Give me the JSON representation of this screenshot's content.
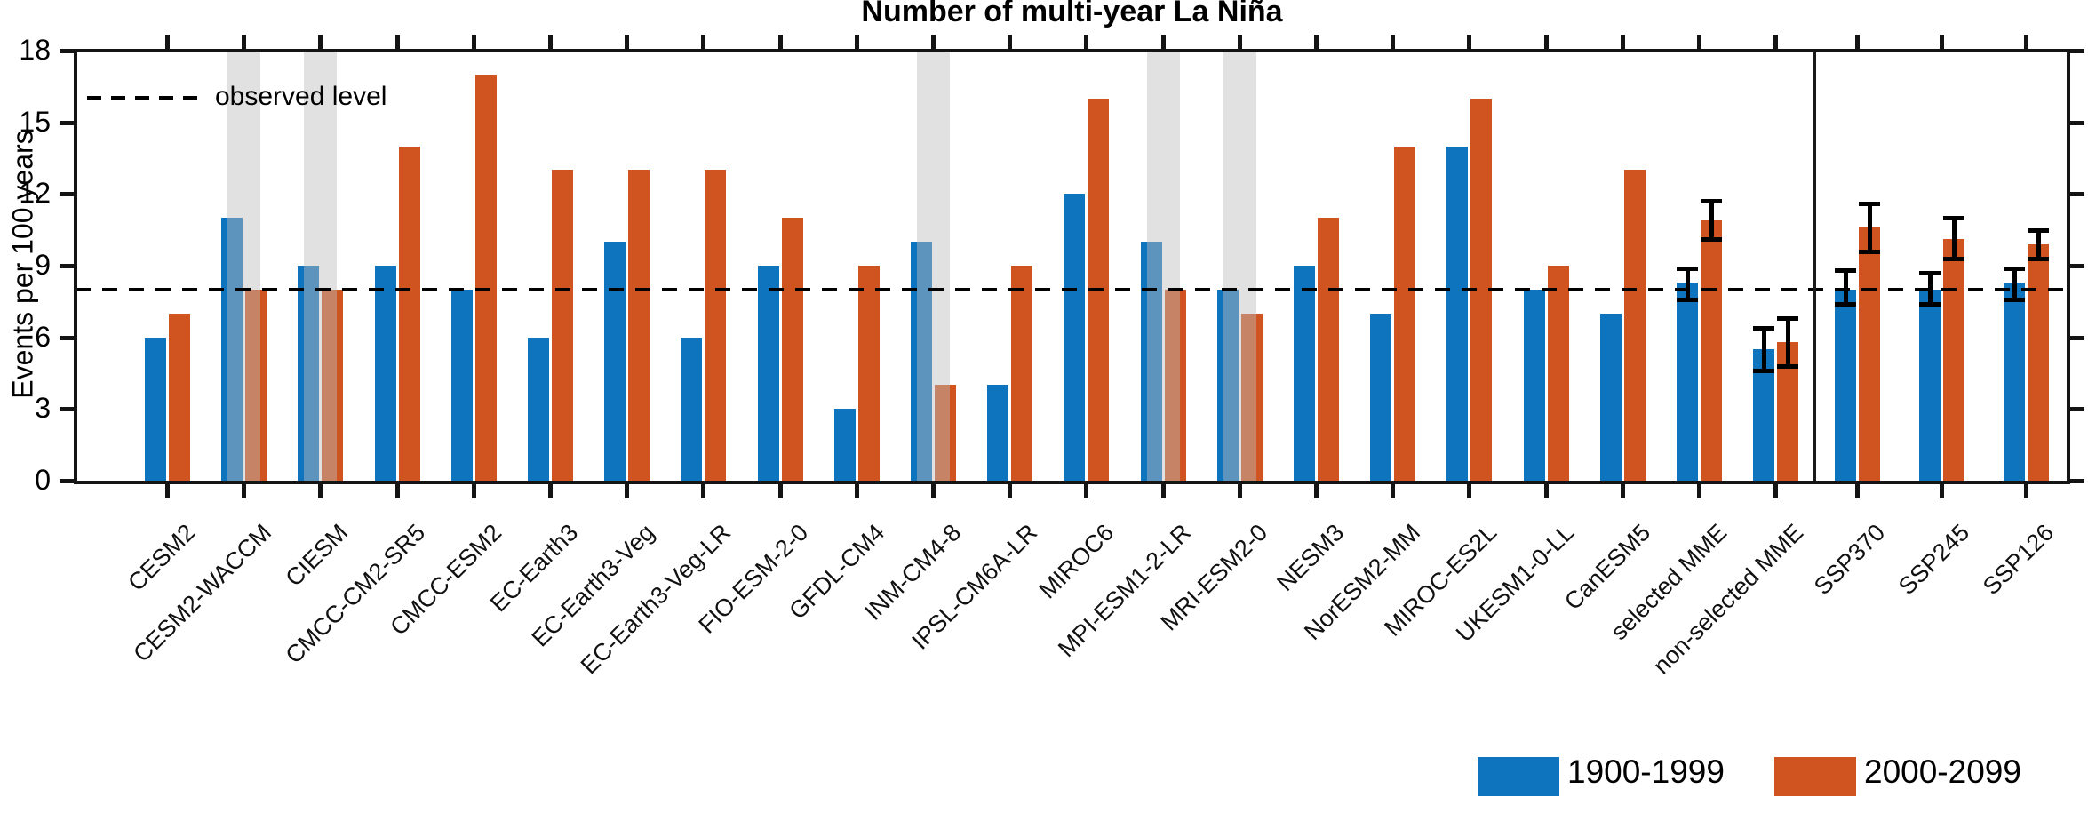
{
  "title": "Number of multi-year La Niña",
  "observed_level_label": "observed level",
  "legend": [
    {
      "label": "1900-1999",
      "color": "#0d74bd"
    },
    {
      "label": "2000-2099",
      "color": "#d0541f"
    }
  ],
  "colors": {
    "series_1900": "#0d74bd",
    "series_2000": "#d0541f",
    "shaded_strip": "#e2e2e2",
    "axis": "#141414",
    "dashed_line": "#000000"
  },
  "chart_data": {
    "type": "bar",
    "title": "Number of multi-year La Niña",
    "xlabel": "",
    "ylabel": "Events per 100 years",
    "ylim": [
      0,
      18
    ],
    "yticks": [
      0,
      3,
      6,
      9,
      12,
      15,
      18
    ],
    "grid": false,
    "observed_level": 8,
    "legend_position": "bottom-right",
    "sections": {
      "models_count": 22,
      "ssp_count": 3,
      "separator_after": "non-selected MME"
    },
    "categories": [
      "CESM2",
      "CESM2-WACCM",
      "CIESM",
      "CMCC-CM2-SR5",
      "CMCC-ESM2",
      "EC-Earth3",
      "EC-Earth3-Veg",
      "EC-Earth3-Veg-LR",
      "FIO-ESM-2-0",
      "GFDL-CM4",
      "INM-CM4-8",
      "IPSL-CM6A-LR",
      "MIROC6",
      "MPI-ESM1-2-LR",
      "MRI-ESM2-0",
      "NESM3",
      "NorESM2-MM",
      "MIROC-ES2L",
      "UKESM1-0-LL",
      "CanESM5",
      "selected MME",
      "non-selected MME",
      "SSP370",
      "SSP245",
      "SSP126"
    ],
    "shaded_categories": [
      "CESM2-WACCM",
      "CIESM",
      "INM-CM4-8",
      "MPI-ESM1-2-LR",
      "MRI-ESM2-0"
    ],
    "series": [
      {
        "name": "1900-1999",
        "values": [
          6,
          11,
          9,
          9,
          8,
          6,
          10,
          6,
          9,
          3,
          10,
          4,
          12,
          10,
          8,
          9,
          7,
          14,
          8,
          7,
          8.3,
          5.5,
          8.0,
          8.0,
          8.3
        ],
        "err_low": [
          null,
          null,
          null,
          null,
          null,
          null,
          null,
          null,
          null,
          null,
          null,
          null,
          null,
          null,
          null,
          null,
          null,
          null,
          null,
          null,
          7.6,
          4.6,
          7.4,
          7.4,
          7.6
        ],
        "err_high": [
          null,
          null,
          null,
          null,
          null,
          null,
          null,
          null,
          null,
          null,
          null,
          null,
          null,
          null,
          null,
          null,
          null,
          null,
          null,
          null,
          8.9,
          6.4,
          8.8,
          8.7,
          8.9
        ]
      },
      {
        "name": "2000-2099",
        "values": [
          7,
          8,
          8,
          14,
          17,
          13,
          13,
          13,
          11,
          9,
          4,
          9,
          16,
          8,
          7,
          11,
          14,
          16,
          9,
          13,
          10.9,
          5.8,
          10.6,
          10.1,
          9.9
        ],
        "err_low": [
          null,
          null,
          null,
          null,
          null,
          null,
          null,
          null,
          null,
          null,
          null,
          null,
          null,
          null,
          null,
          null,
          null,
          null,
          null,
          null,
          10.1,
          4.8,
          9.6,
          9.3,
          9.3
        ],
        "err_high": [
          null,
          null,
          null,
          null,
          null,
          null,
          null,
          null,
          null,
          null,
          null,
          null,
          null,
          null,
          null,
          null,
          null,
          null,
          null,
          null,
          11.7,
          6.8,
          11.6,
          11.0,
          10.5
        ]
      }
    ]
  }
}
